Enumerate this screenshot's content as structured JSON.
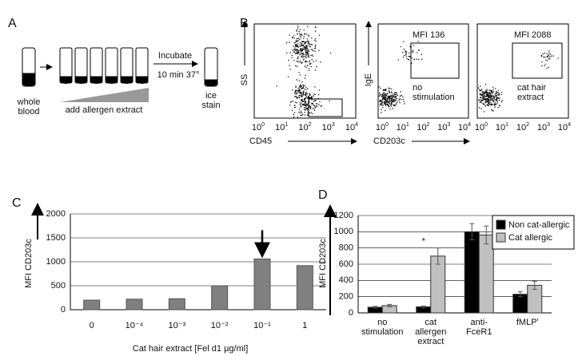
{
  "panels": {
    "a": {
      "label": "A",
      "whole_blood": [
        "whole",
        "blood"
      ],
      "add_extract": "add allergen extract",
      "incubate": "Incubate",
      "time": "10 min 37°",
      "ice_stain": [
        "ice",
        "stain"
      ]
    },
    "b": {
      "label": "B",
      "tick_base": "10",
      "tick_exps": [
        "0",
        "1",
        "2",
        "3",
        "4"
      ],
      "plots": [
        {
          "y_label": "SS",
          "x_label": "CD45"
        },
        {
          "y_label": "IgE",
          "x_label": "CD203c",
          "mfi": "MFI 136",
          "note": [
            "no",
            "stimulation"
          ]
        },
        {
          "mfi": "MFI 2088",
          "note": [
            "cat hair",
            "extract"
          ]
        }
      ]
    }
  },
  "chart_data": [
    {
      "type": "bar",
      "panel": "C",
      "y_label": "MFI CD203c",
      "x_label": "Cat hair extract [Fel d1 µg/ml]",
      "categories": [
        "0",
        "10⁻⁴",
        "10⁻³",
        "10⁻²",
        "10⁻¹",
        "1"
      ],
      "values": [
        200,
        220,
        230,
        500,
        1060,
        920
      ],
      "color": "#808080",
      "ylim": [
        0,
        2000
      ],
      "yticks": [
        0,
        500,
        1000,
        1500,
        2000
      ],
      "grid": true
    },
    {
      "type": "grouped_bar",
      "panel": "D",
      "y_label": "MFI CD203c",
      "annotation": "*",
      "categories": [
        [
          "no",
          "stimulation"
        ],
        [
          "cat",
          "allergen",
          "extract"
        ],
        [
          "anti-",
          "FceR1"
        ],
        [
          "fMLP'"
        ]
      ],
      "series": [
        {
          "name": "Non cat-allergic",
          "color": "#000000",
          "values": [
            70,
            75,
            1000,
            230
          ],
          "errors": [
            10,
            8,
            100,
            30
          ]
        },
        {
          "name": "Cat allergic",
          "color": "#c0c0c0",
          "values": [
            90,
            700,
            960,
            340
          ],
          "errors": [
            15,
            100,
            110,
            50
          ]
        }
      ],
      "ylim": [
        0,
        1200
      ],
      "yticks": [
        0,
        200,
        400,
        600,
        800,
        1000,
        1200
      ],
      "grid": true,
      "legend": "top-right"
    }
  ]
}
